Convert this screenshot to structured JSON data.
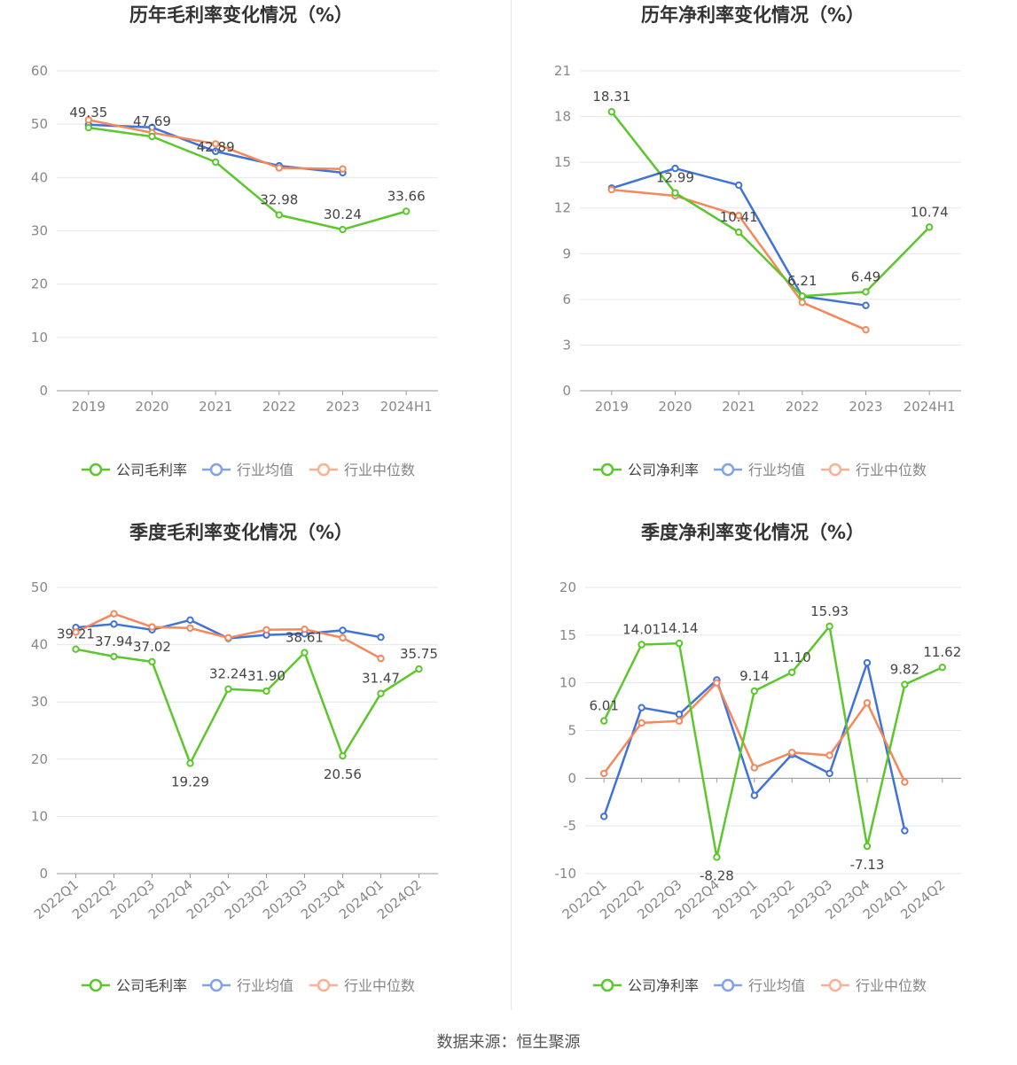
{
  "colors": {
    "company": "#5cc72c",
    "avg": "#3f73d9",
    "median": "#f5885a",
    "grid": "#e3e6ee",
    "axis": "#999999"
  },
  "legend_labels": {
    "gross": "公司毛利率",
    "net": "公司净利率",
    "avg": "行业均值",
    "median": "行业中位数"
  },
  "source_text": "数据来源：恒生聚源",
  "chart_data": [
    {
      "type": "line",
      "title": "历年毛利率变化情况（%）",
      "categories": [
        "2019",
        "2020",
        "2021",
        "2022",
        "2023",
        "2024H1"
      ],
      "ylim": [
        0,
        60
      ],
      "yticks": [
        0,
        10,
        20,
        30,
        40,
        50,
        60
      ],
      "legend": "bottom",
      "series": [
        {
          "name": "公司毛利率",
          "key": "company",
          "values": [
            49.35,
            47.69,
            42.89,
            32.98,
            30.24,
            33.66
          ],
          "labels": [
            "49.35",
            "47.69",
            "42.89",
            "32.98",
            "30.24",
            "33.66"
          ]
        },
        {
          "name": "行业均值",
          "key": "avg",
          "values": [
            49.9,
            49.4,
            44.9,
            42.2,
            40.9,
            null
          ]
        },
        {
          "name": "行业中位数",
          "key": "median",
          "values": [
            50.8,
            48.4,
            46.3,
            41.8,
            41.6,
            null
          ]
        }
      ]
    },
    {
      "type": "line",
      "title": "历年净利率变化情况（%）",
      "categories": [
        "2019",
        "2020",
        "2021",
        "2022",
        "2023",
        "2024H1"
      ],
      "ylim": [
        0,
        21
      ],
      "yticks": [
        0,
        3,
        6,
        9,
        12,
        15,
        18,
        21
      ],
      "legend": "bottom",
      "series": [
        {
          "name": "公司净利率",
          "key": "company",
          "values": [
            18.31,
            12.99,
            10.41,
            6.21,
            6.49,
            10.74
          ],
          "labels": [
            "18.31",
            "12.99",
            "10.41",
            "6.21",
            "6.49",
            "10.74"
          ]
        },
        {
          "name": "行业均值",
          "key": "avg",
          "values": [
            13.3,
            14.6,
            13.5,
            6.2,
            5.6,
            null
          ]
        },
        {
          "name": "行业中位数",
          "key": "median",
          "values": [
            13.2,
            12.8,
            11.5,
            5.8,
            4.0,
            null
          ]
        }
      ]
    },
    {
      "type": "line",
      "title": "季度毛利率变化情况（%）",
      "categories": [
        "2022Q1",
        "2022Q2",
        "2022Q3",
        "2022Q4",
        "2023Q1",
        "2023Q2",
        "2023Q3",
        "2023Q4",
        "2024Q1",
        "2024Q2"
      ],
      "ylim": [
        0,
        50
      ],
      "yticks": [
        0,
        10,
        20,
        30,
        40,
        50
      ],
      "legend": "bottom",
      "series": [
        {
          "name": "公司毛利率",
          "key": "company",
          "values": [
            39.21,
            37.94,
            37.02,
            19.29,
            32.24,
            31.9,
            38.61,
            20.56,
            31.47,
            35.75
          ],
          "labels": [
            "39.21",
            "37.94",
            "37.02",
            "19.29",
            "32.24",
            "31.90",
            "38.61",
            "20.56",
            "31.47",
            "35.75"
          ]
        },
        {
          "name": "行业均值",
          "key": "avg",
          "values": [
            43.0,
            43.6,
            42.6,
            44.3,
            41.1,
            41.7,
            41.9,
            42.5,
            41.3,
            null
          ]
        },
        {
          "name": "行业中位数",
          "key": "median",
          "values": [
            42.2,
            45.4,
            43.1,
            42.9,
            41.2,
            42.6,
            42.7,
            41.2,
            37.6,
            null
          ]
        }
      ]
    },
    {
      "type": "line",
      "title": "季度净利率变化情况（%）",
      "categories": [
        "2022Q1",
        "2022Q2",
        "2022Q3",
        "2022Q4",
        "2023Q1",
        "2023Q2",
        "2023Q3",
        "2023Q4",
        "2024Q1",
        "2024Q2"
      ],
      "ylim": [
        -10,
        20
      ],
      "yticks": [
        -10,
        -5,
        0,
        5,
        10,
        15,
        20
      ],
      "legend": "bottom",
      "series": [
        {
          "name": "公司净利率",
          "key": "company",
          "values": [
            6.01,
            14.01,
            14.14,
            -8.28,
            9.14,
            11.1,
            15.93,
            -7.13,
            9.82,
            11.62
          ],
          "labels": [
            "6.01",
            "14.01",
            "14.14",
            "-8.28",
            "9.14",
            "11.10",
            "15.93",
            "-7.13",
            "9.82",
            "11.62"
          ]
        },
        {
          "name": "行业均值",
          "key": "avg",
          "values": [
            -4.0,
            7.4,
            6.7,
            10.3,
            -1.8,
            2.5,
            0.5,
            12.1,
            -5.5,
            null
          ]
        },
        {
          "name": "行业中位数",
          "key": "median",
          "values": [
            0.5,
            5.8,
            6.0,
            10.0,
            1.1,
            2.7,
            2.4,
            7.9,
            -0.4,
            null
          ]
        }
      ]
    }
  ]
}
